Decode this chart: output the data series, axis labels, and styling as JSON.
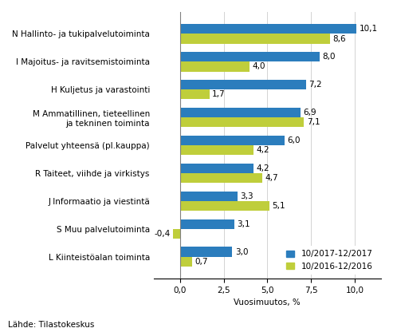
{
  "categories": [
    "N Hallinto- ja tukipalvelutoiminta",
    "I Majoitus- ja ravitsemistoiminta",
    "H Kuljetus ja varastointi",
    "M Ammatillinen, tieteellinen\nja tekninen toiminta",
    "Palvelut yhteensä (pl.kauppa)",
    "R Taiteet, viihde ja virkistys",
    "J Informaatio ja viestintä",
    "S Muu palvelutoiminta",
    "L Kiinteistöalan toiminta"
  ],
  "values_2017": [
    10.1,
    8.0,
    7.2,
    6.9,
    6.0,
    4.2,
    3.3,
    3.1,
    3.0
  ],
  "values_2016": [
    8.6,
    4.0,
    1.7,
    7.1,
    4.2,
    4.7,
    5.1,
    -0.4,
    0.7
  ],
  "color_2017": "#2B7DBD",
  "color_2016": "#BFCE3B",
  "legend_2017": "10/2017-12/2017",
  "legend_2016": "10/2016-12/2016",
  "xlabel": "Vuosimuutos, %",
  "xlim": [
    -1.5,
    11.5
  ],
  "xticks": [
    0.0,
    2.5,
    5.0,
    7.5,
    10.0
  ],
  "xtick_labels": [
    "0,0",
    "2,5",
    "5,0",
    "7,5",
    "10,0"
  ],
  "footer": "Lähde: Tilastokeskus",
  "bar_height": 0.35,
  "label_fontsize": 7.5,
  "tick_fontsize": 7.5,
  "footer_fontsize": 7.5
}
